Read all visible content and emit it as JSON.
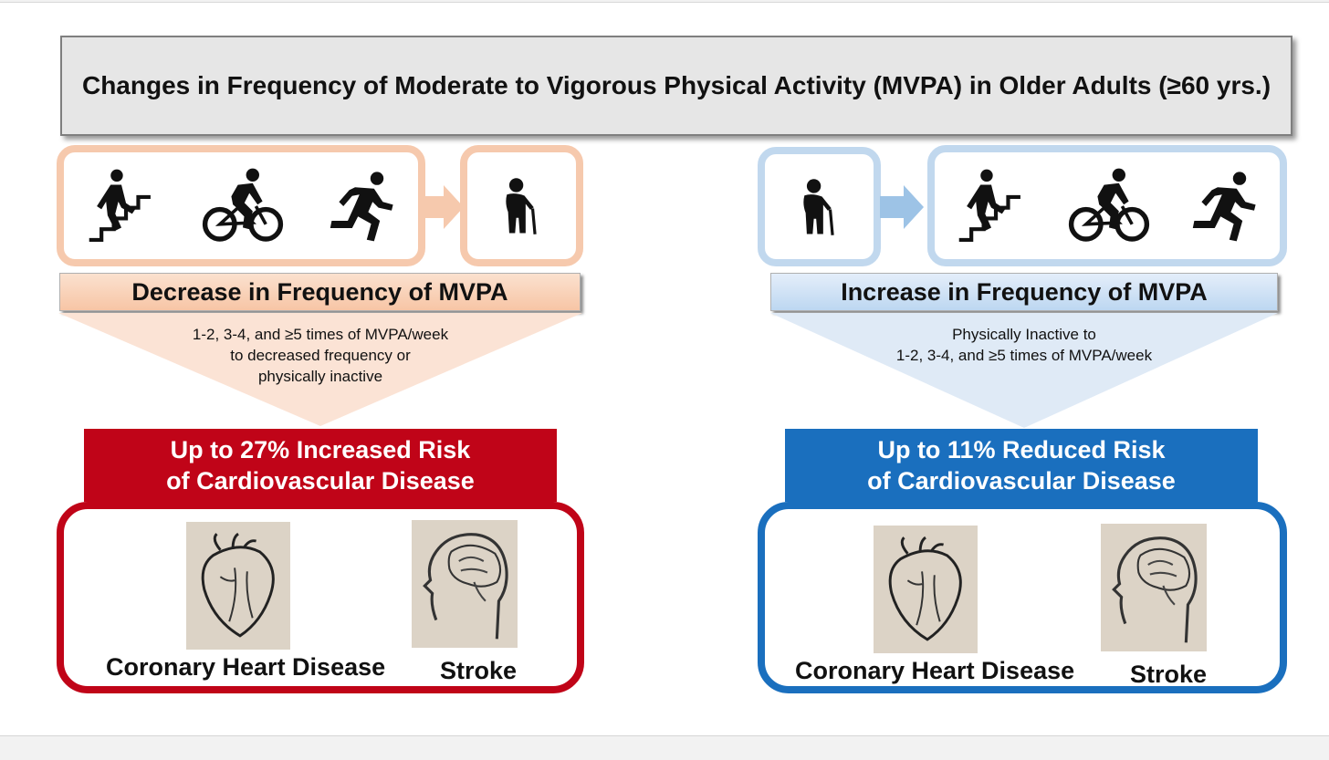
{
  "title": "Changes in Frequency of Moderate to Vigorous Physical Activity (MVPA) in Older Adults (≥60 yrs.)",
  "colors": {
    "orange_border": "#f6c9ad",
    "orange_fill": "#fbe3d5",
    "light_blue_border": "#c1d8ee",
    "light_blue_fill": "#dfeaf6",
    "red": "#c00418",
    "blue": "#1a6fbe",
    "title_bg": "#e6e6e6"
  },
  "left": {
    "active_icons": [
      "stairs-climber-icon",
      "cyclist-icon",
      "runner-icon"
    ],
    "inactive_icon": "elderly-cane-icon",
    "label": "Decrease in Frequency of MVPA",
    "description": [
      "1-2, 3-4, and ≥5 times of MVPA/week",
      "to decreased frequency or",
      "physically inactive"
    ],
    "risk_line1": "Up to 27% Increased Risk",
    "risk_line2": "of Cardiovascular Disease",
    "disease1": "Coronary Heart Disease",
    "disease2": "Stroke"
  },
  "right": {
    "inactive_icon": "elderly-cane-icon",
    "active_icons": [
      "stairs-climber-icon",
      "cyclist-icon",
      "runner-icon"
    ],
    "label": "Increase in Frequency of MVPA",
    "description": [
      "Physically Inactive to",
      "1-2, 3-4, and ≥5 times of MVPA/week"
    ],
    "risk_line1": "Up to 11% Reduced Risk",
    "risk_line2": "of Cardiovascular Disease",
    "disease1": "Coronary Heart Disease",
    "disease2": "Stroke"
  }
}
